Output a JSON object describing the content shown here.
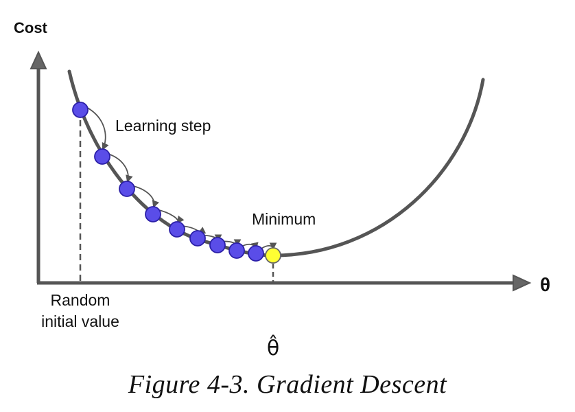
{
  "axes": {
    "y_label": "Cost",
    "x_label": "θ"
  },
  "annotations": {
    "learning_step": "Learning step",
    "minimum": "Minimum",
    "random_initial_line1": "Random",
    "random_initial_line2": "initial value",
    "theta_hat": "θ̂"
  },
  "caption": "Figure 4-3. Gradient Descent",
  "colors": {
    "curve": "#555555",
    "axis": "#555555",
    "step_point_fill": "#5a4de8",
    "step_point_stroke": "#2b1fa8",
    "minimum_point_fill": "#ffff33",
    "minimum_point_stroke": "#666666"
  },
  "steps_count_visible": 9
}
